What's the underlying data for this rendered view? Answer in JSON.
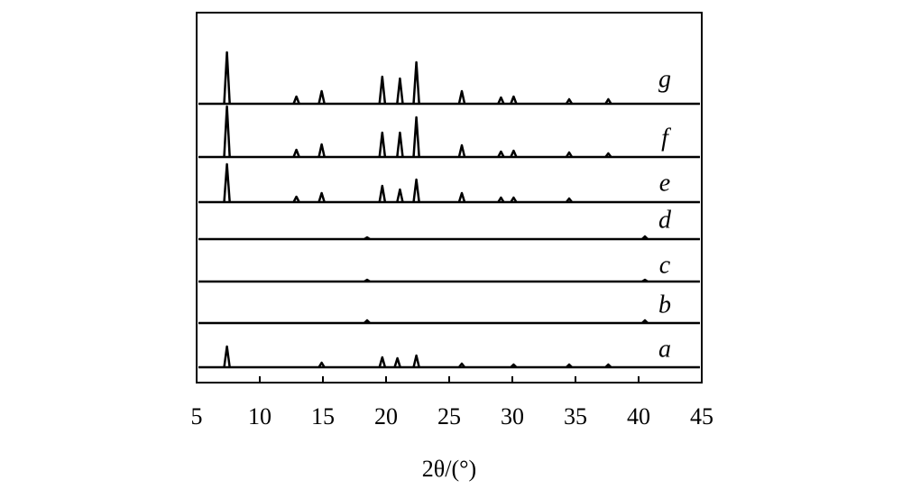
{
  "chart_data": {
    "type": "xrd-stack",
    "x_label": "2θ/(°)",
    "xlim": [
      5,
      45
    ],
    "xticks": [
      5,
      10,
      15,
      20,
      25,
      30,
      35,
      40,
      45
    ],
    "color": "#000000",
    "series": [
      {
        "name": "a",
        "x": [
          7.4,
          14.9,
          19.7,
          20.9,
          22.4,
          26.0,
          30.1,
          34.5,
          37.6
        ],
        "values": [
          23,
          5,
          11,
          10,
          13,
          4,
          3,
          3,
          3
        ]
      },
      {
        "name": "b",
        "x": [
          18.5,
          40.5
        ],
        "values": [
          3,
          3
        ]
      },
      {
        "name": "c",
        "x": [
          18.5,
          40.5
        ],
        "values": [
          2,
          2
        ]
      },
      {
        "name": "d",
        "x": [
          18.5,
          40.5
        ],
        "values": [
          2,
          3
        ]
      },
      {
        "name": "e",
        "x": [
          7.4,
          12.9,
          14.9,
          19.7,
          21.1,
          22.4,
          26.0,
          29.1,
          30.1,
          34.5
        ],
        "values": [
          42,
          6,
          10,
          18,
          14,
          25,
          10,
          5,
          5,
          4
        ]
      },
      {
        "name": "f",
        "x": [
          7.4,
          12.9,
          14.9,
          19.7,
          21.1,
          22.4,
          26.0,
          29.1,
          30.1,
          34.5,
          37.6
        ],
        "values": [
          56,
          8,
          14,
          27,
          27,
          44,
          13,
          6,
          7,
          5,
          4
        ]
      },
      {
        "name": "g",
        "x": [
          7.4,
          12.9,
          14.9,
          19.7,
          21.1,
          22.4,
          26.0,
          29.1,
          30.1,
          34.5,
          37.6
        ],
        "values": [
          57,
          8,
          14,
          30,
          28,
          46,
          14,
          7,
          8,
          5,
          5
        ]
      }
    ]
  }
}
